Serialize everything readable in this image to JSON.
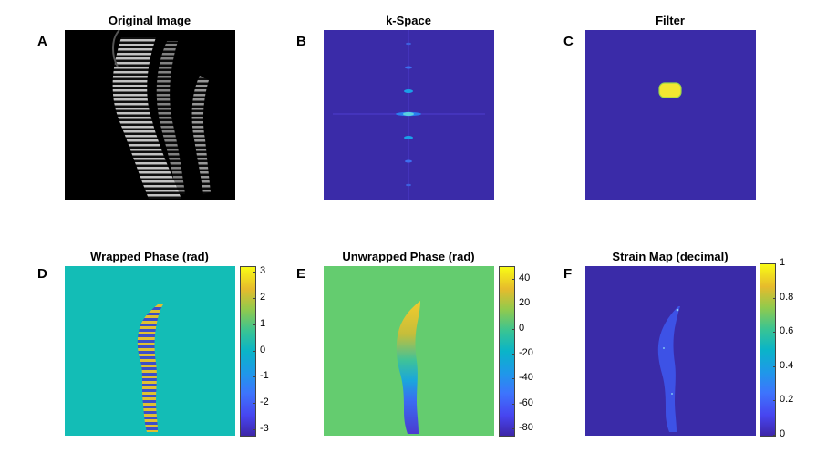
{
  "panels": [
    {
      "letter": "A",
      "title": "Original Image"
    },
    {
      "letter": "B",
      "title": "k-Space"
    },
    {
      "letter": "C",
      "title": "Filter"
    },
    {
      "letter": "D",
      "title": "Wrapped Phase (rad)"
    },
    {
      "letter": "E",
      "title": "Unwrapped Phase (rad)"
    },
    {
      "letter": "F",
      "title": "Strain Map (decimal)"
    }
  ],
  "colorbars": {
    "wrapped": {
      "ticks": [
        "3",
        "2",
        "1",
        "0",
        "-1",
        "-2",
        "-3"
      ],
      "min": -3.2,
      "max": 3.2,
      "values": [
        3,
        2,
        1,
        0,
        -1,
        -2,
        -3
      ]
    },
    "unwrapped": {
      "ticks": [
        "40",
        "20",
        "0",
        "-20",
        "-40",
        "-60",
        "-80"
      ],
      "min": -85,
      "max": 50,
      "values": [
        40,
        20,
        0,
        -20,
        -40,
        -60,
        -80
      ]
    },
    "strain": {
      "ticks": [
        "1",
        "0.8",
        "0.6",
        "0.4",
        "0.2",
        "0"
      ],
      "min": 0,
      "max": 1,
      "values": [
        1,
        0.8,
        0.6,
        0.4,
        0.2,
        0
      ]
    }
  },
  "colors": {
    "parula_low": "#3e26a8",
    "parula_mid": "#13bdb6",
    "parula_green": "#64cc6f",
    "parula_high": "#f9fb15",
    "background": "#ffffff"
  }
}
